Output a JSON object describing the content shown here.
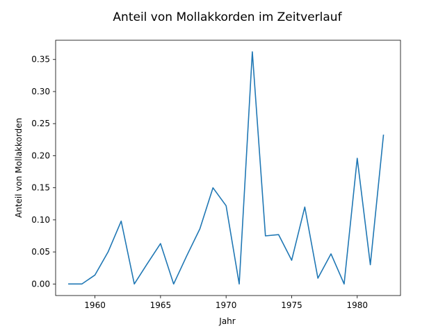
{
  "chart_data": {
    "type": "line",
    "title": "Anteil von Mollakkorden im Zeitverlauf",
    "xlabel": "Jahr",
    "ylabel": "Anteil von Mollakkorden",
    "xlim": [
      1957,
      1983.3
    ],
    "ylim": [
      -0.018,
      0.38
    ],
    "xticks": [
      1960,
      1965,
      1970,
      1975,
      1980
    ],
    "yticks": [
      0.0,
      0.05,
      0.1,
      0.15,
      0.2,
      0.25,
      0.3,
      0.35
    ],
    "ytick_labels": [
      "0.00",
      "0.05",
      "0.10",
      "0.15",
      "0.20",
      "0.25",
      "0.30",
      "0.35"
    ],
    "grid": false,
    "legend": "none",
    "series": [
      {
        "color": "#1f77b4",
        "x": [
          1958,
          1959,
          1960,
          1961,
          1962,
          1963,
          1964,
          1965,
          1966,
          1967,
          1968,
          1969,
          1970,
          1971,
          1972,
          1973,
          1974,
          1975,
          1976,
          1977,
          1978,
          1979,
          1980,
          1981,
          1982
        ],
        "y": [
          0.0,
          0.0,
          0.014,
          0.05,
          0.098,
          0.0,
          0.032,
          0.063,
          0.0,
          0.044,
          0.086,
          0.15,
          0.122,
          0.0,
          0.362,
          0.075,
          0.077,
          0.037,
          0.12,
          0.009,
          0.047,
          0.0,
          0.196,
          0.03,
          0.232
        ]
      }
    ]
  }
}
